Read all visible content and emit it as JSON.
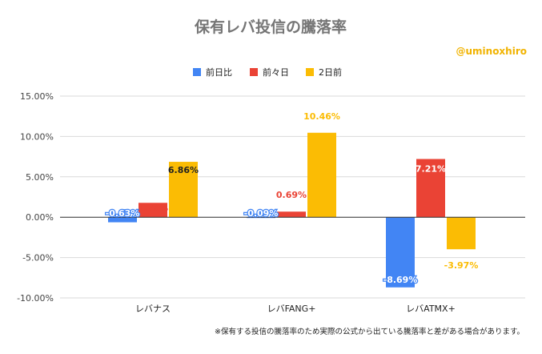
{
  "chart_data": {
    "type": "bar",
    "title": "保有レバ投信の騰落率",
    "watermark": "@uminoxhiro",
    "footnote": "※保有する投信の騰落率のため実際の公式から出ている騰落率と差がある場合があります。",
    "categories": [
      "レバナス",
      "レバFANG+",
      "レバATMX+"
    ],
    "series": [
      {
        "name": "前日比",
        "color": "#4285f4",
        "values": [
          -0.63,
          -0.09,
          -8.69
        ],
        "labels": [
          "-0.63%",
          "-0.09%",
          "-8.69%"
        ]
      },
      {
        "name": "前々日",
        "color": "#ea4335",
        "values": [
          1.78,
          0.69,
          7.21
        ],
        "labels": [
          "1.78%",
          "0.69%",
          "7.21%"
        ]
      },
      {
        "name": "2日前",
        "color": "#fbbc04",
        "values": [
          6.86,
          10.46,
          -3.97
        ],
        "labels": [
          "6.86%",
          "10.46%",
          "-3.97%"
        ]
      }
    ],
    "ylim": [
      -10,
      15
    ],
    "yticks": [
      "15.00%",
      "10.00%",
      "5.00%",
      "0.00%",
      "-5.00%",
      "-10.00%"
    ],
    "grid": true,
    "legend_position": "top"
  }
}
